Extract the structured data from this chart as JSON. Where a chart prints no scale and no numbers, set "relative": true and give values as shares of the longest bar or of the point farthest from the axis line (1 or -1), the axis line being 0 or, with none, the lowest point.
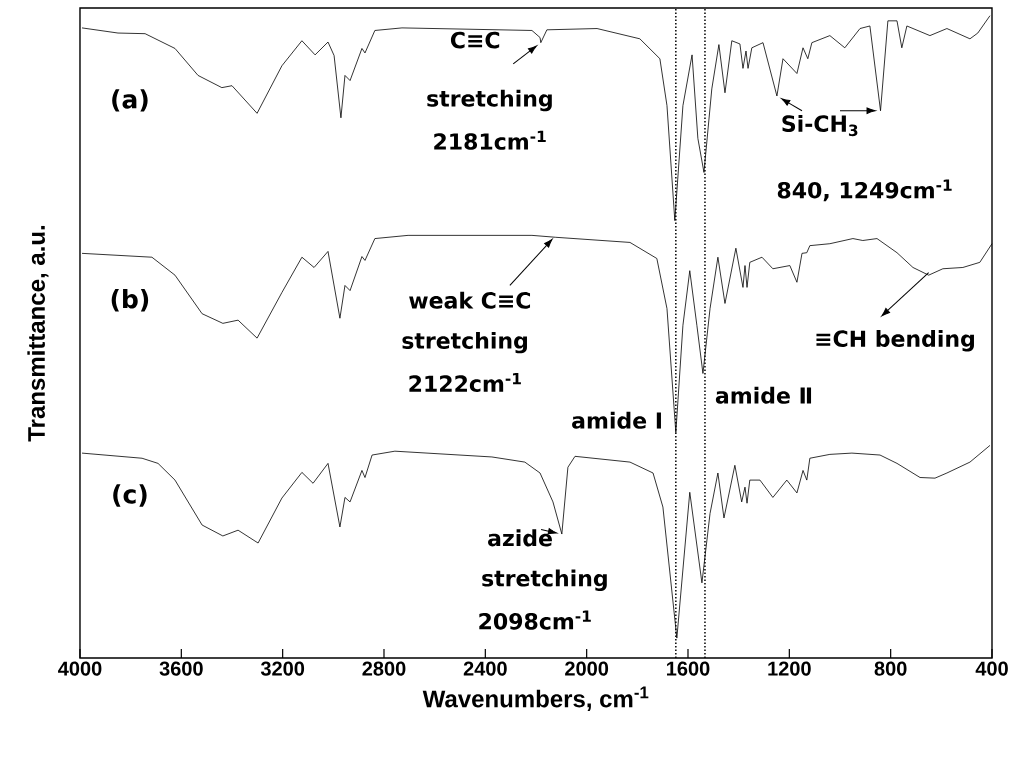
{
  "chart_data": {
    "type": "line",
    "relative": true,
    "xlabel": "Wavenumbers, cm$^{-1}$",
    "ylabel": "Transmittance, a.u.",
    "xlim": [
      4000,
      400
    ],
    "xticks": [
      4000,
      3600,
      3200,
      2800,
      2400,
      2000,
      1600,
      1200,
      800,
      400
    ],
    "series": [
      {
        "name": "(a)",
        "color": "#000000",
        "x": [
          3992,
          3850,
          3743,
          3625,
          3534,
          3440,
          3400,
          3301,
          3203,
          3124,
          3072,
          3021,
          2997,
          2970,
          2954,
          2934,
          2887,
          2875,
          2836,
          2729,
          2216,
          2184,
          2181,
          2157,
          1959,
          1790,
          1711,
          1683,
          1652,
          1620,
          1584,
          1561,
          1537,
          1506,
          1478,
          1454,
          1427,
          1395,
          1383,
          1371,
          1363,
          1348,
          1304,
          1249,
          1225,
          1170,
          1146,
          1127,
          1111,
          1040,
          981,
          921,
          882,
          840,
          811,
          775,
          756,
          736,
          645,
          578,
          487,
          456,
          408
        ],
        "values": [
          0.981,
          0.973,
          0.972,
          0.949,
          0.907,
          0.888,
          0.891,
          0.848,
          0.922,
          0.961,
          0.939,
          0.959,
          0.938,
          0.841,
          0.907,
          0.899,
          0.949,
          0.942,
          0.977,
          0.981,
          0.977,
          0.966,
          0.958,
          0.978,
          0.98,
          0.964,
          0.933,
          0.86,
          0.681,
          0.86,
          0.939,
          0.809,
          0.756,
          0.886,
          0.955,
          0.88,
          0.961,
          0.956,
          0.918,
          0.945,
          0.918,
          0.95,
          0.958,
          0.875,
          0.933,
          0.91,
          0.95,
          0.933,
          0.958,
          0.969,
          0.95,
          0.98,
          0.984,
          0.852,
          0.992,
          0.992,
          0.95,
          0.984,
          0.969,
          0.98,
          0.964,
          0.973,
          1.0
        ]
      },
      {
        "name": "(b)",
        "color": "#000000",
        "x": [
          3992,
          3716,
          3625,
          3518,
          3436,
          3376,
          3301,
          3203,
          3124,
          3076,
          3021,
          2974,
          2954,
          2934,
          2887,
          2875,
          2836,
          2705,
          2216,
          2122,
          1829,
          1723,
          1683,
          1648,
          1620,
          1593,
          1565,
          1541,
          1513,
          1482,
          1454,
          1411,
          1383,
          1375,
          1367,
          1356,
          1308,
          1265,
          1198,
          1170,
          1150,
          1131,
          1119,
          1040,
          949,
          910,
          854,
          775,
          712,
          650,
          594,
          515,
          448,
          400
        ],
        "values": [
          0.63,
          0.624,
          0.596,
          0.536,
          0.521,
          0.526,
          0.498,
          0.569,
          0.624,
          0.608,
          0.633,
          0.529,
          0.58,
          0.572,
          0.625,
          0.619,
          0.653,
          0.658,
          0.658,
          0.655,
          0.647,
          0.622,
          0.544,
          0.351,
          0.518,
          0.603,
          0.518,
          0.443,
          0.544,
          0.624,
          0.552,
          0.638,
          0.577,
          0.611,
          0.577,
          0.616,
          0.624,
          0.606,
          0.611,
          0.585,
          0.63,
          0.631,
          0.642,
          0.645,
          0.653,
          0.65,
          0.653,
          0.631,
          0.608,
          0.596,
          0.606,
          0.608,
          0.616,
          0.645
        ]
      },
      {
        "name": "(c)",
        "color": "#000000",
        "x": [
          3992,
          3755,
          3692,
          3625,
          3518,
          3436,
          3376,
          3297,
          3203,
          3124,
          3080,
          3021,
          2974,
          2954,
          2934,
          2887,
          2875,
          2847,
          2757,
          2374,
          2244,
          2184,
          2133,
          2098,
          2074,
          2046,
          1829,
          1738,
          1699,
          1644,
          1593,
          1545,
          1513,
          1482,
          1458,
          1415,
          1388,
          1375,
          1367,
          1356,
          1316,
          1265,
          1210,
          1170,
          1146,
          1131,
          1119,
          1040,
          953,
          842,
          775,
          684,
          625,
          578,
          487,
          408
        ],
        "values": [
          0.319,
          0.311,
          0.303,
          0.277,
          0.207,
          0.19,
          0.199,
          0.179,
          0.249,
          0.289,
          0.272,
          0.303,
          0.204,
          0.25,
          0.243,
          0.292,
          0.281,
          0.316,
          0.322,
          0.313,
          0.305,
          0.288,
          0.243,
          0.193,
          0.297,
          0.314,
          0.305,
          0.288,
          0.235,
          0.031,
          0.258,
          0.117,
          0.225,
          0.288,
          0.218,
          0.3,
          0.243,
          0.266,
          0.241,
          0.277,
          0.277,
          0.25,
          0.277,
          0.257,
          0.292,
          0.277,
          0.311,
          0.317,
          0.319,
          0.316,
          0.303,
          0.281,
          0.28,
          0.288,
          0.305,
          0.331
        ]
      }
    ],
    "ref_lines": [
      {
        "axis": "x",
        "value": 1648,
        "color": "#000000",
        "line_style": "dotted"
      },
      {
        "axis": "x",
        "value": 1533,
        "color": "#000000",
        "line_style": "dotted"
      }
    ],
    "annotations": [
      {
        "text": "C≡C",
        "x": 2181,
        "y": 0.958
      },
      "stretching",
      "2181cm$^{-1}$",
      {
        "text": "Si-CH$_{3}$",
        "x": 1249,
        "y": 0.875
      },
      "840, 1249cm$^{-1}$",
      {
        "text": "weak C≡C",
        "x": 2122,
        "y": 0.658
      },
      "stretching",
      "2122cm$^{-1}$",
      {
        "text": "≡CH bending",
        "x": 650,
        "y": 0.6
      },
      "amide Ⅰ",
      "amide Ⅱ",
      {
        "text": "azide",
        "x": 2098,
        "y": 0.193
      },
      "stretching",
      "2098cm$^{-1}$"
    ]
  }
}
